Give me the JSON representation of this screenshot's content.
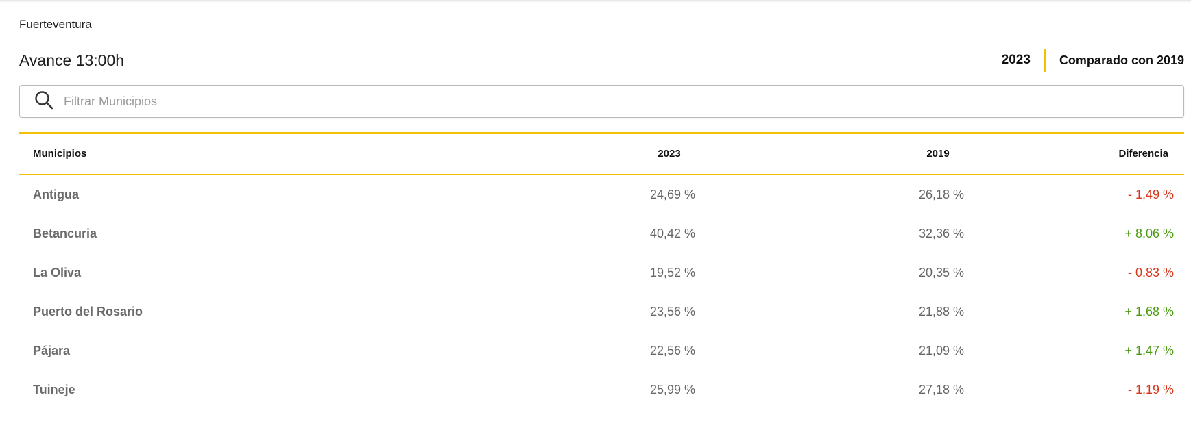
{
  "region": "Fuerteventura",
  "header": {
    "title": "Avance 13:00h",
    "year_current": "2023",
    "year_compare": "Comparado con 2019"
  },
  "search": {
    "placeholder": "Filtrar Municipios",
    "value": "",
    "icon": "search-icon"
  },
  "table": {
    "columns": [
      "Municipios",
      "2023",
      "2019",
      "Diferencia"
    ],
    "rows": [
      {
        "name": "Antigua",
        "y2023": "24,69 %",
        "y2019": "26,18 %",
        "diff": "- 1,49 %",
        "trend": "neg"
      },
      {
        "name": "Betancuria",
        "y2023": "40,42 %",
        "y2019": "32,36 %",
        "diff": "+ 8,06 %",
        "trend": "pos"
      },
      {
        "name": "La Oliva",
        "y2023": "19,52 %",
        "y2019": "20,35 %",
        "diff": "- 0,83 %",
        "trend": "neg"
      },
      {
        "name": "Puerto del Rosario",
        "y2023": "23,56 %",
        "y2019": "21,88 %",
        "diff": "+ 1,68 %",
        "trend": "pos"
      },
      {
        "name": "Pájara",
        "y2023": "22,56 %",
        "y2019": "21,09 %",
        "diff": "+ 1,47 %",
        "trend": "pos"
      },
      {
        "name": "Tuineje",
        "y2023": "25,99 %",
        "y2019": "27,18 %",
        "diff": "- 1,19 %",
        "trend": "neg"
      }
    ]
  },
  "colors": {
    "accent": "#f2c200",
    "negative": "#d8351b",
    "positive": "#4a9a12"
  }
}
